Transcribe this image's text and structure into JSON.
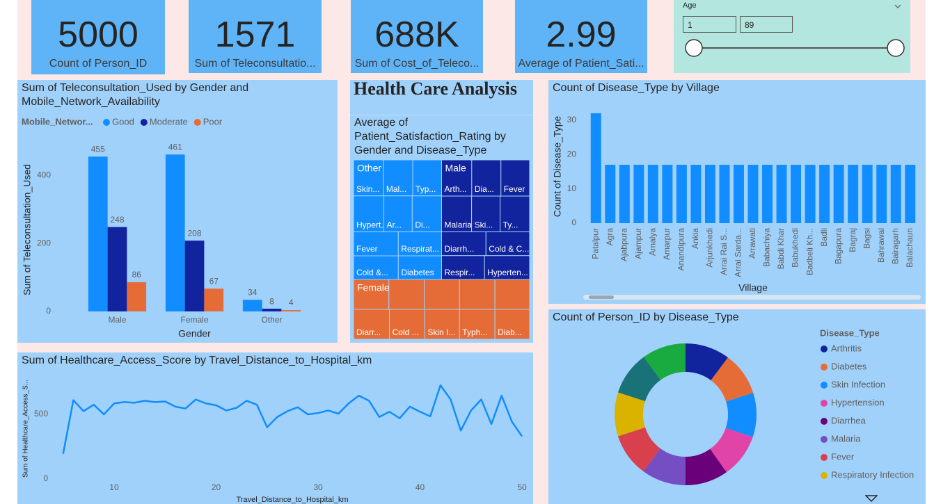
{
  "cards": [
    {
      "value": 5000,
      "label": "Count of Person_ID"
    },
    {
      "value": 1571,
      "label": "Sum of Teleconsultatio..."
    },
    {
      "value": "688K",
      "label": "Sum of Cost_of_Teleco..."
    },
    {
      "value": 2.99,
      "label": "Average of Patient_Sati..."
    }
  ],
  "slicer": {
    "label": "Age",
    "min": 1,
    "max": 89
  },
  "dashboard_title": "Health Care Analysis",
  "chart_data": [
    {
      "type": "bar",
      "title": "Sum of Teleconsultation_Used by Gender and Mobile_Network_Availability",
      "legend_title": "Mobile_Networ...",
      "legend": "top-left",
      "categories": [
        "Male",
        "Female",
        "Other"
      ],
      "series": [
        {
          "name": "Good",
          "color": "#118dff",
          "values": [
            455,
            461,
            34
          ]
        },
        {
          "name": "Moderate",
          "color": "#12239e",
          "values": [
            248,
            208,
            8
          ]
        },
        {
          "name": "Poor",
          "color": "#e66c37",
          "values": [
            86,
            67,
            4
          ]
        }
      ],
      "ylim": [
        0,
        480
      ],
      "yticks": [
        0,
        200,
        400
      ],
      "xlabel": "Gender",
      "ylabel": "Sum of Teleconsultation_Used",
      "data_labels": true,
      "grid": false
    },
    {
      "type": "treemap",
      "title": "Average of Patient_Satisfaction_Rating by Gender and Disease_Type",
      "series": [
        {
          "name": "Other",
          "color": "#118dff",
          "labels": [
            "Skin...",
            "Mal...",
            "Typ...",
            "Hypert...",
            "Ar...",
            "Di...",
            "Fever",
            "Respirat...",
            "Cold &...",
            "Diabetes"
          ],
          "values": [
            3.05,
            3.0,
            2.95,
            3.1,
            2.9,
            3.0,
            3.05,
            2.95,
            3.0,
            2.9
          ]
        },
        {
          "name": "Male",
          "color": "#12239e",
          "labels": [
            "Arth...",
            "Dia...",
            "Fever",
            "Malaria",
            "Ski...",
            "Ty...",
            "Diarrh...",
            "Cold & C...",
            "Respir...",
            "Hyperten..."
          ],
          "values": [
            3.1,
            3.0,
            2.95,
            3.05,
            2.9,
            3.0,
            3.0,
            2.95,
            2.9,
            3.05
          ]
        },
        {
          "name": "Female",
          "color": "#e66c37",
          "labels": [
            null,
            null,
            null,
            null,
            null,
            "Diarr...",
            "Cold ...",
            "Skin I...",
            "Typh...",
            "Diab..."
          ],
          "values": [
            3.0,
            3.0,
            3.0,
            3.0,
            2.95,
            3.05,
            3.0,
            2.95,
            3.0,
            2.95
          ]
        }
      ]
    },
    {
      "type": "bar",
      "title": "Count of Disease_Type by Village",
      "categories": [
        "Patalpur",
        "Agra",
        "Ajabpura",
        "Ajampur",
        "Amalya",
        "Amarpur",
        "Anandipura",
        "Ankia",
        "Arjunkhedi",
        "Arrai Rai S...",
        "Arrai Sarda...",
        "Arrawati",
        "Babachiya",
        "Babdi Khar",
        "Babukhedi",
        "Badbeli Kh...",
        "Badli",
        "Bagapura",
        "Bagraj",
        "Bagsi",
        "Bahrawal",
        "Bairagarh",
        "Balachaun"
      ],
      "values": [
        32,
        17,
        17,
        17,
        17,
        17,
        17,
        17,
        17,
        17,
        17,
        17,
        17,
        17,
        17,
        17,
        17,
        17,
        17,
        17,
        17,
        17,
        17
      ],
      "color": "#118dff",
      "ylim": [
        0,
        33
      ],
      "yticks": [
        0,
        10,
        20,
        30
      ],
      "xlabel": "Village",
      "ylabel": "Count of Disease_Type",
      "grid": false
    },
    {
      "type": "donut",
      "title": "Count of Person_ID by Disease_Type",
      "legend_title": "Disease_Type",
      "legend": "right",
      "categories": [
        "Arthritis",
        "Diabetes",
        "Skin Infection",
        "Hypertension",
        "Diarrhea",
        "Malaria",
        "Fever",
        "Respiratory Infection",
        null,
        null
      ],
      "colors": [
        "#12239e",
        "#e66c37",
        "#118dff",
        "#e044a7",
        "#6b007b",
        "#744ec2",
        "#d9404d",
        "#d9b300",
        "#197278",
        "#1aab40"
      ],
      "values": [
        510,
        495,
        505,
        500,
        490,
        505,
        495,
        500,
        500,
        500
      ]
    },
    {
      "type": "line",
      "title": "Sum of Healthcare_Access_Score by Travel_Distance_to_Hospital_km",
      "x": [
        5,
        6,
        7,
        8,
        9,
        10,
        11,
        12,
        13,
        14,
        15,
        16,
        17,
        18,
        19,
        20,
        21,
        22,
        23,
        24,
        25,
        26,
        27,
        28,
        29,
        30,
        31,
        32,
        33,
        34,
        35,
        36,
        37,
        38,
        39,
        40,
        41,
        42,
        43,
        44,
        45,
        46,
        47,
        48,
        49,
        50
      ],
      "values": [
        195,
        610,
        525,
        575,
        500,
        585,
        595,
        590,
        605,
        595,
        600,
        560,
        545,
        615,
        585,
        570,
        530,
        550,
        605,
        575,
        400,
        480,
        525,
        555,
        500,
        510,
        530,
        505,
        585,
        645,
        605,
        480,
        520,
        470,
        560,
        520,
        485,
        725,
        615,
        375,
        530,
        615,
        425,
        645,
        445,
        330
      ],
      "color": "#118dff",
      "xlim": [
        4.5,
        50.4
      ],
      "ylim": [
        0,
        780
      ],
      "xticks": [
        10,
        20,
        30,
        40,
        50
      ],
      "yticks": [
        0,
        500
      ],
      "xlabel": "Travel_Distance_to_Hospital_km",
      "ylabel": "Sum of Healthcare_Access_S...",
      "grid": false
    }
  ]
}
